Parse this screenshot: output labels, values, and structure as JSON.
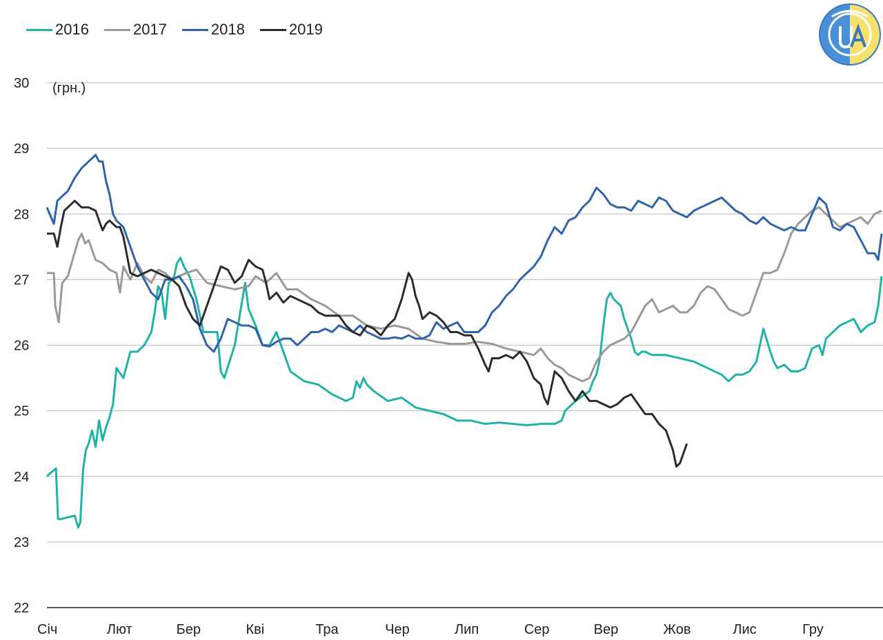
{
  "chart_data": {
    "type": "line",
    "unit_label": "(грн.)",
    "y_ticks": [
      22,
      23,
      24,
      25,
      26,
      27,
      28,
      29,
      30
    ],
    "ylim": [
      22,
      30
    ],
    "x_tick_labels": [
      "Січ",
      "Лют",
      "Бер",
      "Кві",
      "Тра",
      "Чер",
      "Лип",
      "Сер",
      "Вер",
      "Жов",
      "Лис",
      "Гру"
    ],
    "xlim": [
      0,
      12
    ],
    "grid": true,
    "legend_position": "top-left",
    "series": [
      {
        "name": "2016",
        "color": "#1fb3a6",
        "x": [
          0.0,
          0.05,
          0.13,
          0.16,
          0.2,
          0.4,
          0.45,
          0.48,
          0.52,
          0.56,
          0.6,
          0.65,
          0.7,
          0.75,
          0.8,
          0.85,
          0.9,
          0.95,
          1.0,
          1.1,
          1.2,
          1.3,
          1.4,
          1.5,
          1.55,
          1.6,
          1.65,
          1.7,
          1.75,
          1.8,
          1.83,
          1.87,
          1.92,
          1.97,
          2.05,
          2.15,
          2.25,
          2.3,
          2.45,
          2.5,
          2.55,
          2.7,
          2.85,
          2.9,
          3.0,
          3.1,
          3.2,
          3.3,
          3.5,
          3.7,
          3.9,
          4.1,
          4.3,
          4.4,
          4.45,
          4.5,
          4.55,
          4.6,
          4.7,
          4.9,
          5.1,
          5.3,
          5.5,
          5.7,
          5.9,
          6.1,
          6.3,
          6.5,
          6.7,
          6.9,
          7.1,
          7.3,
          7.4,
          7.45,
          7.6,
          7.8,
          7.85,
          7.9,
          7.95,
          8.0,
          8.05,
          8.1,
          8.15,
          8.2,
          8.25,
          8.3,
          8.4,
          8.45,
          8.5,
          8.55,
          8.6,
          8.7,
          8.9,
          9.1,
          9.3,
          9.5,
          9.7,
          9.8,
          9.85,
          9.9,
          10.0,
          10.1,
          10.2,
          10.3,
          10.4,
          10.45,
          10.5,
          10.6,
          10.7,
          10.8,
          10.9,
          11.0,
          11.1,
          11.15,
          11.2,
          11.3,
          11.4,
          11.5,
          11.6,
          11.7,
          11.8,
          11.9,
          11.95,
          12.0
        ],
        "values": [
          24.0,
          24.05,
          24.12,
          23.35,
          23.35,
          23.4,
          23.22,
          23.3,
          24.1,
          24.4,
          24.5,
          24.7,
          24.45,
          24.85,
          24.55,
          24.75,
          24.9,
          25.1,
          25.65,
          25.5,
          25.9,
          25.9,
          26.0,
          26.2,
          26.5,
          26.9,
          26.8,
          26.4,
          26.95,
          27.0,
          27.05,
          27.25,
          27.33,
          27.2,
          27.05,
          26.7,
          26.2,
          26.2,
          26.2,
          25.6,
          25.5,
          26.0,
          26.95,
          26.55,
          26.3,
          26.0,
          26.0,
          26.2,
          25.6,
          25.45,
          25.4,
          25.25,
          25.15,
          25.2,
          25.45,
          25.35,
          25.5,
          25.4,
          25.3,
          25.15,
          25.2,
          25.05,
          25.0,
          24.95,
          24.85,
          24.85,
          24.8,
          24.82,
          24.8,
          24.78,
          24.8,
          24.8,
          24.85,
          25.0,
          25.15,
          25.3,
          25.45,
          25.55,
          25.8,
          26.3,
          26.7,
          26.8,
          26.7,
          26.65,
          26.6,
          26.4,
          26.1,
          25.9,
          25.85,
          25.9,
          25.9,
          25.85,
          25.85,
          25.8,
          25.75,
          25.65,
          25.55,
          25.45,
          25.5,
          25.55,
          25.55,
          25.6,
          25.75,
          26.25,
          25.9,
          25.75,
          25.65,
          25.7,
          25.6,
          25.6,
          25.65,
          25.95,
          26.0,
          25.85,
          26.1,
          26.2,
          26.3,
          26.35,
          26.4,
          26.2,
          26.3,
          26.35,
          26.6,
          27.05
        ]
      },
      {
        "name": "2017",
        "color": "#999999",
        "x": [
          0.0,
          0.1,
          0.12,
          0.17,
          0.22,
          0.3,
          0.45,
          0.5,
          0.55,
          0.6,
          0.7,
          0.8,
          0.9,
          1.0,
          1.05,
          1.1,
          1.2,
          1.3,
          1.4,
          1.5,
          1.6,
          1.7,
          1.8,
          2.0,
          2.15,
          2.3,
          2.5,
          2.7,
          2.9,
          3.0,
          3.15,
          3.3,
          3.45,
          3.6,
          3.8,
          4.0,
          4.2,
          4.4,
          4.6,
          4.8,
          5.0,
          5.2,
          5.4,
          5.6,
          5.8,
          6.0,
          6.2,
          6.4,
          6.6,
          6.8,
          7.0,
          7.1,
          7.2,
          7.3,
          7.4,
          7.5,
          7.6,
          7.7,
          7.8,
          7.9,
          8.0,
          8.1,
          8.2,
          8.3,
          8.4,
          8.5,
          8.6,
          8.7,
          8.8,
          8.9,
          9.0,
          9.1,
          9.2,
          9.3,
          9.4,
          9.5,
          9.6,
          9.7,
          9.8,
          9.9,
          10.0,
          10.1,
          10.2,
          10.3,
          10.4,
          10.5,
          10.6,
          10.7,
          10.8,
          10.9,
          11.0,
          11.1,
          11.2,
          11.3,
          11.4,
          11.5,
          11.6,
          11.7,
          11.8,
          11.9,
          12.0
        ],
        "values": [
          27.1,
          27.1,
          26.6,
          26.35,
          26.95,
          27.05,
          27.6,
          27.7,
          27.55,
          27.6,
          27.3,
          27.25,
          27.15,
          27.1,
          26.8,
          27.2,
          27.0,
          27.25,
          27.05,
          26.95,
          27.15,
          27.1,
          27.0,
          27.1,
          27.15,
          26.95,
          26.9,
          26.85,
          26.9,
          27.05,
          26.95,
          27.1,
          26.85,
          26.85,
          26.7,
          26.6,
          26.45,
          26.45,
          26.3,
          26.25,
          26.3,
          26.25,
          26.1,
          26.05,
          26.02,
          26.02,
          26.05,
          26.02,
          25.95,
          25.9,
          25.85,
          25.95,
          25.8,
          25.7,
          25.65,
          25.55,
          25.5,
          25.45,
          25.5,
          25.75,
          25.9,
          26.0,
          26.05,
          26.1,
          26.2,
          26.4,
          26.6,
          26.7,
          26.5,
          26.55,
          26.6,
          26.5,
          26.5,
          26.6,
          26.8,
          26.9,
          26.85,
          26.7,
          26.55,
          26.5,
          26.45,
          26.5,
          26.8,
          27.1,
          27.1,
          27.15,
          27.4,
          27.7,
          27.85,
          27.95,
          28.05,
          28.1,
          28.0,
          27.9,
          27.8,
          27.85,
          27.9,
          27.95,
          27.85,
          28.0,
          28.05
        ]
      },
      {
        "name": "2018",
        "color": "#2e63a9",
        "x": [
          0.0,
          0.1,
          0.15,
          0.2,
          0.25,
          0.3,
          0.4,
          0.5,
          0.6,
          0.7,
          0.75,
          0.8,
          0.85,
          0.9,
          0.95,
          1.0,
          1.1,
          1.2,
          1.3,
          1.4,
          1.5,
          1.6,
          1.7,
          1.8,
          1.9,
          2.0,
          2.1,
          2.2,
          2.3,
          2.4,
          2.5,
          2.6,
          2.7,
          2.8,
          2.9,
          3.0,
          3.1,
          3.2,
          3.3,
          3.4,
          3.5,
          3.6,
          3.7,
          3.8,
          3.9,
          4.0,
          4.1,
          4.2,
          4.3,
          4.4,
          4.5,
          4.6,
          4.7,
          4.8,
          4.9,
          5.0,
          5.1,
          5.2,
          5.3,
          5.4,
          5.5,
          5.6,
          5.7,
          5.8,
          5.9,
          6.0,
          6.1,
          6.2,
          6.3,
          6.4,
          6.5,
          6.6,
          6.7,
          6.8,
          6.9,
          7.0,
          7.1,
          7.2,
          7.3,
          7.4,
          7.5,
          7.6,
          7.7,
          7.8,
          7.9,
          8.0,
          8.1,
          8.2,
          8.3,
          8.4,
          8.5,
          8.6,
          8.7,
          8.8,
          8.9,
          9.0,
          9.1,
          9.2,
          9.3,
          9.4,
          9.5,
          9.6,
          9.7,
          9.8,
          9.9,
          10.0,
          10.1,
          10.2,
          10.3,
          10.4,
          10.5,
          10.6,
          10.7,
          10.8,
          10.9,
          11.0,
          11.1,
          11.2,
          11.3,
          11.4,
          11.5,
          11.6,
          11.7,
          11.8,
          11.9,
          11.95,
          12.0
        ],
        "values": [
          28.1,
          27.85,
          28.2,
          28.25,
          28.3,
          28.35,
          28.55,
          28.7,
          28.8,
          28.9,
          28.8,
          28.8,
          28.5,
          28.3,
          28.0,
          27.9,
          27.8,
          27.5,
          27.2,
          27.0,
          26.8,
          26.7,
          27.0,
          27.0,
          27.05,
          26.9,
          26.7,
          26.25,
          26.0,
          25.9,
          26.1,
          26.4,
          26.35,
          26.3,
          26.3,
          26.25,
          26.0,
          25.98,
          26.05,
          26.1,
          26.1,
          26.0,
          26.1,
          26.2,
          26.2,
          26.25,
          26.2,
          26.3,
          26.25,
          26.2,
          26.3,
          26.2,
          26.15,
          26.1,
          26.1,
          26.12,
          26.1,
          26.15,
          26.1,
          26.1,
          26.15,
          26.35,
          26.25,
          26.3,
          26.35,
          26.2,
          26.2,
          26.2,
          26.3,
          26.5,
          26.6,
          26.75,
          26.85,
          27.0,
          27.1,
          27.2,
          27.35,
          27.6,
          27.8,
          27.7,
          27.9,
          27.95,
          28.1,
          28.2,
          28.4,
          28.3,
          28.15,
          28.1,
          28.1,
          28.05,
          28.2,
          28.15,
          28.1,
          28.25,
          28.2,
          28.05,
          28.0,
          27.95,
          28.05,
          28.1,
          28.15,
          28.2,
          28.25,
          28.15,
          28.05,
          28.0,
          27.9,
          27.85,
          27.95,
          27.85,
          27.8,
          27.75,
          27.8,
          27.75,
          27.75,
          28.0,
          28.25,
          28.15,
          27.8,
          27.75,
          27.85,
          27.8,
          27.6,
          27.4,
          27.4,
          27.3,
          27.7
        ]
      },
      {
        "name": "2019",
        "color": "#2b2b2b",
        "x": [
          0.0,
          0.1,
          0.15,
          0.2,
          0.25,
          0.3,
          0.4,
          0.5,
          0.6,
          0.7,
          0.75,
          0.8,
          0.85,
          0.9,
          1.0,
          1.05,
          1.1,
          1.2,
          1.3,
          1.4,
          1.5,
          1.6,
          1.7,
          1.8,
          1.9,
          2.0,
          2.1,
          2.2,
          2.3,
          2.4,
          2.5,
          2.6,
          2.7,
          2.8,
          2.9,
          3.0,
          3.1,
          3.15,
          3.2,
          3.3,
          3.4,
          3.5,
          3.6,
          3.7,
          3.8,
          3.9,
          4.0,
          4.1,
          4.2,
          4.3,
          4.4,
          4.5,
          4.6,
          4.7,
          4.8,
          4.9,
          5.0,
          5.1,
          5.15,
          5.2,
          5.25,
          5.3,
          5.35,
          5.4,
          5.5,
          5.6,
          5.7,
          5.8,
          5.9,
          6.0,
          6.1,
          6.2,
          6.3,
          6.35,
          6.4,
          6.5,
          6.6,
          6.7,
          6.8,
          6.9,
          7.0,
          7.1,
          7.15,
          7.2,
          7.3,
          7.4,
          7.5,
          7.6,
          7.7,
          7.8,
          7.9,
          8.0,
          8.1,
          8.2,
          8.3,
          8.4,
          8.5,
          8.6,
          8.7,
          8.8,
          8.9,
          9.0,
          9.05,
          9.1,
          9.2
        ],
        "values": [
          27.7,
          27.7,
          27.5,
          27.8,
          28.05,
          28.1,
          28.2,
          28.1,
          28.1,
          28.05,
          27.9,
          27.75,
          27.85,
          27.9,
          27.8,
          27.8,
          27.65,
          27.1,
          27.05,
          27.1,
          27.15,
          27.1,
          27.05,
          27.0,
          26.9,
          26.6,
          26.4,
          26.3,
          26.6,
          26.9,
          27.2,
          27.15,
          26.95,
          27.05,
          27.3,
          27.2,
          27.15,
          26.95,
          26.7,
          26.8,
          26.65,
          26.75,
          26.7,
          26.65,
          26.6,
          26.5,
          26.45,
          26.45,
          26.45,
          26.3,
          26.2,
          26.15,
          26.3,
          26.25,
          26.15,
          26.3,
          26.4,
          26.7,
          26.9,
          27.1,
          27.0,
          26.75,
          26.6,
          26.4,
          26.5,
          26.45,
          26.35,
          26.2,
          26.2,
          26.15,
          26.15,
          25.95,
          25.7,
          25.6,
          25.8,
          25.8,
          25.85,
          25.8,
          25.9,
          25.75,
          25.5,
          25.4,
          25.2,
          25.1,
          25.6,
          25.5,
          25.3,
          25.15,
          25.3,
          25.15,
          25.15,
          25.1,
          25.05,
          25.1,
          25.2,
          25.25,
          25.1,
          24.95,
          24.95,
          24.8,
          24.7,
          24.4,
          24.15,
          24.2,
          24.5
        ]
      }
    ]
  }
}
